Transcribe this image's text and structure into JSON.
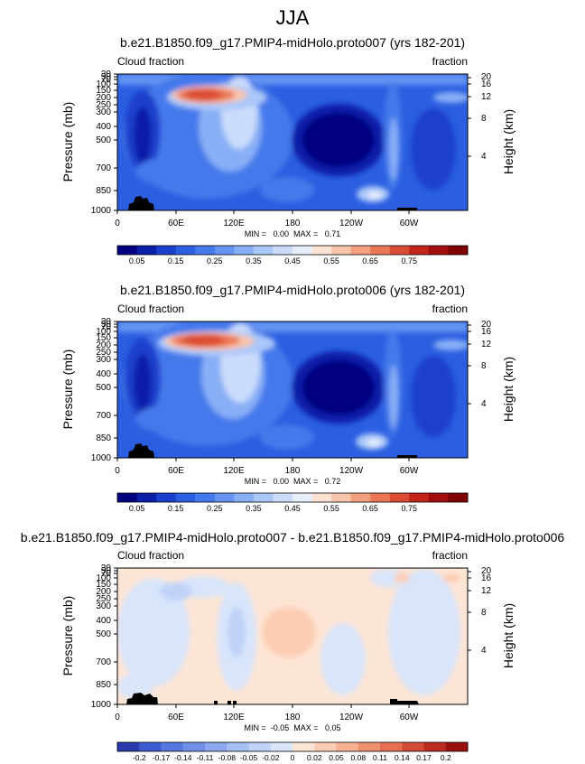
{
  "figure": {
    "title": "JJA"
  },
  "chart_data": [
    {
      "type": "heatmap",
      "title": "b.e21.B1850.f09_g17.PMIP4-midHolo.proto007 (yrs 182-201)",
      "left_label": "Cloud fraction",
      "right_label": "fraction",
      "xlabel": "",
      "ylabel": "Pressure (mb)",
      "y2label": "Height (km)",
      "x_ticks": [
        "0",
        "60E",
        "120E",
        "180",
        "120W",
        "60W"
      ],
      "y_ticks": [
        "1000",
        "850",
        "700",
        "500",
        "400",
        "300",
        "250",
        "200",
        "150",
        "100",
        "70",
        "50",
        "30"
      ],
      "y2_ticks": [
        "4",
        "8",
        "12",
        "16",
        "20"
      ],
      "stats": "MIN =   0.00  MAX =   0.71",
      "colorbar": {
        "colors": [
          "#000080",
          "#0a1fa8",
          "#1a3fcc",
          "#2b5ee0",
          "#4479eb",
          "#6594f2",
          "#88aff6",
          "#aac7f9",
          "#cbdcfb",
          "#e6eefc",
          "#fbe2d3",
          "#f8c4aa",
          "#f3a07e",
          "#ea7755",
          "#da4c33",
          "#c22419",
          "#a20d0d",
          "#7f0000"
        ],
        "labels": [
          "0.05",
          "0.15",
          "0.25",
          "0.35",
          "0.45",
          "0.55",
          "0.65",
          "0.75"
        ]
      }
    },
    {
      "type": "heatmap",
      "title": "b.e21.B1850.f09_g17.PMIP4-midHolo.proto006 (yrs 182-201)",
      "left_label": "Cloud fraction",
      "right_label": "fraction",
      "xlabel": "",
      "ylabel": "Pressure (mb)",
      "y2label": "Height (km)",
      "x_ticks": [
        "0",
        "60E",
        "120E",
        "180",
        "120W",
        "60W"
      ],
      "y_ticks": [
        "1000",
        "850",
        "700",
        "500",
        "400",
        "300",
        "250",
        "200",
        "150",
        "100",
        "70",
        "50",
        "30"
      ],
      "y2_ticks": [
        "4",
        "8",
        "12",
        "16",
        "20"
      ],
      "stats": "MIN =   0.00  MAX =   0.72",
      "colorbar": {
        "colors": [
          "#000080",
          "#0a1fa8",
          "#1a3fcc",
          "#2b5ee0",
          "#4479eb",
          "#6594f2",
          "#88aff6",
          "#aac7f9",
          "#cbdcfb",
          "#e6eefc",
          "#fbe2d3",
          "#f8c4aa",
          "#f3a07e",
          "#ea7755",
          "#da4c33",
          "#c22419",
          "#a20d0d",
          "#7f0000"
        ],
        "labels": [
          "0.05",
          "0.15",
          "0.25",
          "0.35",
          "0.45",
          "0.55",
          "0.65",
          "0.75"
        ]
      }
    },
    {
      "type": "heatmap",
      "title": "b.e21.B1850.f09_g17.PMIP4-midHolo.proto007 - b.e21.B1850.f09_g17.PMIP4-midHolo.proto006",
      "left_label": "Cloud fraction",
      "right_label": "fraction",
      "xlabel": "",
      "ylabel": "Pressure (mb)",
      "y2label": "Height (km)",
      "x_ticks": [
        "0",
        "60E",
        "120E",
        "180",
        "120W",
        "60W"
      ],
      "y_ticks": [
        "1000",
        "850",
        "700",
        "500",
        "400",
        "300",
        "250",
        "200",
        "150",
        "100",
        "70",
        "50",
        "30"
      ],
      "y2_ticks": [
        "4",
        "8",
        "12",
        "16",
        "20"
      ],
      "stats": "MIN =  -0.05  MAX =   0.05",
      "colorbar": {
        "colors": [
          "#2a3bb0",
          "#3d5bd0",
          "#5577e0",
          "#6f8fe8",
          "#8aa7ef",
          "#a5bef4",
          "#bfd2f8",
          "#d8e5fb",
          "#fde5d5",
          "#fbcdb3",
          "#f7b092",
          "#f09070",
          "#e66e52",
          "#d54b37",
          "#bd2b20",
          "#9c0f0f"
        ],
        "labels": [
          "-0.2",
          "-0.17",
          "-0.14",
          "-0.11",
          "-0.08",
          "-0.05",
          "-0.02",
          "0",
          "0.02",
          "0.05",
          "0.08",
          "0.11",
          "0.14",
          "0.17",
          "0.2"
        ]
      }
    }
  ]
}
